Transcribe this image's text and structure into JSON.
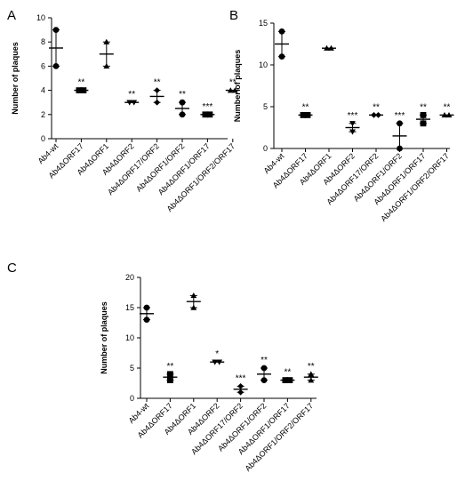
{
  "chart_data": [
    {
      "panel": "A",
      "type": "scatter",
      "ylabel": "Number of plaques",
      "ylim": [
        0,
        10
      ],
      "yticks": [
        0,
        2,
        4,
        6,
        8,
        10
      ],
      "categories": [
        "Ab4-wt",
        "Ab4ΔORF17",
        "Ab4ΔORF1",
        "Ab4ΔORF2",
        "Ab4ΔORF17/ORF2",
        "Ab4ΔORF1/ORF2",
        "Ab4ΔORF1/ORF17",
        "Ab4ΔORF1/ORF2/ORF17"
      ],
      "means": [
        7.5,
        4,
        7,
        3,
        3.5,
        2.5,
        2,
        4
      ],
      "errors": [
        1.5,
        0,
        1,
        0,
        0.5,
        0.5,
        0,
        0
      ],
      "points": [
        [
          6,
          9
        ],
        [
          4,
          4
        ],
        [
          6,
          8
        ],
        [
          3,
          3
        ],
        [
          3,
          4
        ],
        [
          2,
          3
        ],
        [
          2,
          2
        ],
        [
          4,
          4
        ]
      ],
      "significance": [
        "",
        "**",
        "",
        "**",
        "**",
        "**",
        "***",
        "**"
      ]
    },
    {
      "panel": "B",
      "type": "scatter",
      "ylabel": "Number of plaques",
      "ylim": [
        0,
        15
      ],
      "yticks": [
        0,
        5,
        10,
        15
      ],
      "categories": [
        "Ab4-wt",
        "Ab4ΔORF17",
        "Ab4ΔORF1",
        "Ab4ΔORF2",
        "Ab4ΔORF17/ORF2",
        "Ab4ΔORF1/ORF2",
        "Ab4ΔORF1/ORF17",
        "Ab4ΔORF1/ORF2/ORF17"
      ],
      "means": [
        12.5,
        4,
        12,
        2.5,
        4,
        1.5,
        3.5,
        4
      ],
      "errors": [
        1.5,
        0,
        0,
        0.5,
        0,
        1.5,
        0.5,
        0
      ],
      "points": [
        [
          11,
          14
        ],
        [
          4,
          4
        ],
        [
          12,
          12
        ],
        [
          2,
          3
        ],
        [
          4,
          4
        ],
        [
          0,
          3
        ],
        [
          3,
          4
        ],
        [
          4,
          4
        ]
      ],
      "significance": [
        "",
        "**",
        "",
        "***",
        "**",
        "***",
        "**",
        "**"
      ]
    },
    {
      "panel": "C",
      "type": "scatter",
      "ylabel": "Number of plaques",
      "ylim": [
        0,
        20
      ],
      "yticks": [
        0,
        5,
        10,
        15,
        20
      ],
      "categories": [
        "Ab4-wt",
        "Ab4ΔORF17",
        "Ab4ΔORF1",
        "Ab4ΔORF2",
        "Ab4ΔORF17/ORF2",
        "Ab4ΔORF1/ORF2",
        "Ab4ΔORF1/ORF17",
        "Ab4ΔORF1/ORF2/ORF17"
      ],
      "means": [
        14,
        3.5,
        16,
        6,
        1.5,
        4,
        3,
        3.5
      ],
      "errors": [
        1,
        0.5,
        1,
        0,
        0.5,
        1,
        0,
        0.5
      ],
      "points": [
        [
          13,
          15
        ],
        [
          3,
          4
        ],
        [
          15,
          17
        ],
        [
          6,
          6
        ],
        [
          1,
          2
        ],
        [
          3,
          5
        ],
        [
          3,
          3
        ],
        [
          3,
          4
        ]
      ],
      "significance": [
        "",
        "**",
        "",
        "*",
        "***",
        "**",
        "**",
        "**"
      ]
    }
  ]
}
